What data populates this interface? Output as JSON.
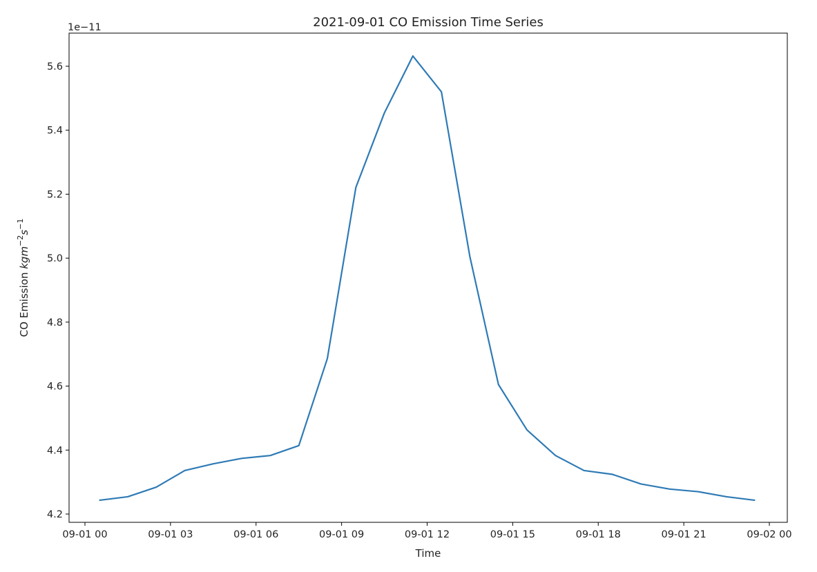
{
  "chart_data": {
    "type": "line",
    "title": "2021-09-01 CO Emission Time Series",
    "xlabel": "Time",
    "ylabel_prefix": "CO Emission ",
    "ylabel_units": {
      "base": "kgm",
      "exp1": "−2",
      "mid": "s",
      "exp2": "−1"
    },
    "offset_text": "1e−11",
    "xlim": [
      "2021-09-01 00:00",
      "2021-09-02 00:00"
    ],
    "ylim": [
      4.18,
      5.7
    ],
    "x_ticks": [
      {
        "value": "2021-09-01 00:00",
        "label": "09-01 00"
      },
      {
        "value": "2021-09-01 03:00",
        "label": "09-01 03"
      },
      {
        "value": "2021-09-01 06:00",
        "label": "09-01 06"
      },
      {
        "value": "2021-09-01 09:00",
        "label": "09-01 09"
      },
      {
        "value": "2021-09-01 12:00",
        "label": "09-01 12"
      },
      {
        "value": "2021-09-01 15:00",
        "label": "09-01 15"
      },
      {
        "value": "2021-09-01 18:00",
        "label": "09-01 18"
      },
      {
        "value": "2021-09-01 21:00",
        "label": "09-01 21"
      },
      {
        "value": "2021-09-02 00:00",
        "label": "09-02 00"
      }
    ],
    "y_ticks": [
      {
        "value": 4.2,
        "label": "4.2"
      },
      {
        "value": 4.4,
        "label": "4.4"
      },
      {
        "value": 4.6,
        "label": "4.6"
      },
      {
        "value": 4.8,
        "label": "4.8"
      },
      {
        "value": 5.0,
        "label": "5.0"
      },
      {
        "value": 5.2,
        "label": "5.2"
      },
      {
        "value": 5.4,
        "label": "5.4"
      },
      {
        "value": 5.6,
        "label": "5.6"
      }
    ],
    "grid": false,
    "series": [
      {
        "color": "#2e7ab5",
        "x": [
          "2021-09-01 00:30",
          "2021-09-01 01:30",
          "2021-09-01 02:30",
          "2021-09-01 03:30",
          "2021-09-01 04:30",
          "2021-09-01 05:30",
          "2021-09-01 06:30",
          "2021-09-01 07:30",
          "2021-09-01 08:30",
          "2021-09-01 09:30",
          "2021-09-01 10:30",
          "2021-09-01 11:30",
          "2021-09-01 12:30",
          "2021-09-01 13:30",
          "2021-09-01 14:30",
          "2021-09-01 15:30",
          "2021-09-01 16:30",
          "2021-09-01 17:30",
          "2021-09-01 18:30",
          "2021-09-01 19:30",
          "2021-09-01 20:30",
          "2021-09-01 21:30",
          "2021-09-01 22:30",
          "2021-09-01 23:30"
        ],
        "y": [
          4.243,
          4.254,
          4.284,
          4.336,
          4.357,
          4.374,
          4.383,
          4.414,
          4.686,
          5.221,
          5.454,
          5.632,
          5.52,
          5.004,
          4.605,
          4.463,
          4.383,
          4.336,
          4.324,
          4.294,
          4.278,
          4.27,
          4.254,
          4.243
        ]
      }
    ]
  }
}
